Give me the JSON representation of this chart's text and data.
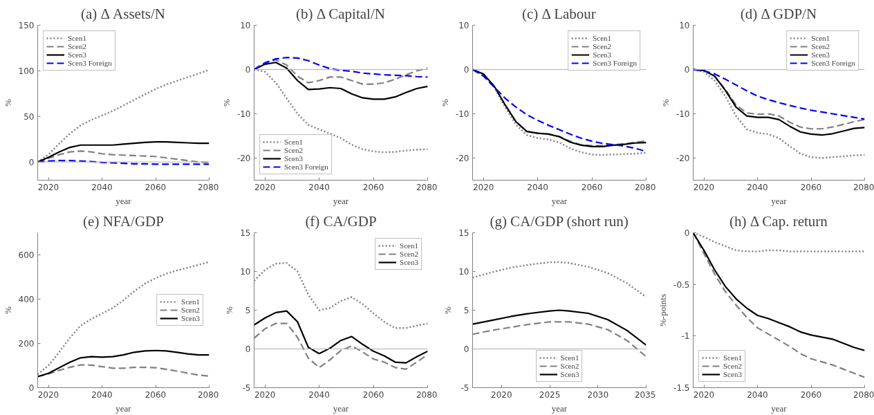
{
  "chart_data": [
    {
      "type": "line",
      "title": "(a) Δ Assets/N",
      "xlabel": "year",
      "ylabel": "%",
      "xlim": [
        2016,
        2080
      ],
      "xticks": [
        2020,
        2040,
        2060,
        2080
      ],
      "ylim": [
        -20,
        150
      ],
      "yticks": [
        0,
        50,
        100,
        150
      ],
      "grid": false,
      "legend": "top left",
      "ref_lines": [
        {
          "axis": "y",
          "value": 0,
          "color": "#b0b0b0"
        }
      ],
      "x": [
        2016,
        2020,
        2024,
        2028,
        2032,
        2036,
        2040,
        2044,
        2048,
        2052,
        2056,
        2060,
        2064,
        2068,
        2072,
        2076,
        2080
      ],
      "series": [
        {
          "name": "Scen1",
          "color": "#808080",
          "line_style": "dotted",
          "values": [
            0,
            8,
            20,
            31,
            40,
            46,
            51,
            56,
            62,
            68,
            74,
            80,
            85,
            89,
            93,
            97,
            101
          ]
        },
        {
          "name": "Scen2",
          "color": "#808080",
          "line_style": "dashed",
          "values": [
            0,
            4,
            8,
            11,
            12,
            11,
            9,
            8,
            7.5,
            7,
            6.5,
            6,
            4.5,
            3,
            1.5,
            0,
            -0.5
          ]
        },
        {
          "name": "Scen3",
          "color": "#000000",
          "line_style": "solid",
          "values": [
            0,
            5,
            11,
            16,
            18.5,
            18.5,
            18.5,
            18.5,
            19.5,
            20.5,
            21.5,
            22,
            22,
            21.5,
            21,
            20.5,
            20.5
          ]
        },
        {
          "name": "Scen3 Foreign",
          "color": "#0000ff",
          "line_style": "dashed",
          "values": [
            0,
            1,
            1.5,
            1.5,
            1,
            0.5,
            -0.5,
            -1,
            -1.5,
            -2,
            -2,
            -2.5,
            -2.5,
            -2.5,
            -2.5,
            -2.5,
            -2.5
          ]
        }
      ]
    },
    {
      "type": "line",
      "title": "(b) Δ Capital/N",
      "xlabel": "year",
      "ylabel": "%",
      "xlim": [
        2016,
        2080
      ],
      "xticks": [
        2020,
        2040,
        2060,
        2080
      ],
      "ylim": [
        -25,
        10
      ],
      "yticks": [
        -20,
        -10,
        0,
        10
      ],
      "grid": false,
      "legend": "bottom left",
      "ref_lines": [
        {
          "axis": "y",
          "value": 0,
          "color": "#b0b0b0"
        }
      ],
      "x": [
        2016,
        2020,
        2024,
        2028,
        2032,
        2036,
        2040,
        2044,
        2048,
        2052,
        2056,
        2060,
        2064,
        2068,
        2072,
        2076,
        2080
      ],
      "series": [
        {
          "name": "Scen1",
          "color": "#808080",
          "line_style": "dotted",
          "values": [
            0,
            -0.5,
            -3,
            -6.5,
            -10,
            -12.5,
            -13.5,
            -14.5,
            -15.5,
            -17,
            -18,
            -18.5,
            -18.7,
            -18.6,
            -18.3,
            -18.1,
            -18
          ]
        },
        {
          "name": "Scen2",
          "color": "#808080",
          "line_style": "dashed",
          "values": [
            0,
            1.5,
            2.2,
            1,
            -1.5,
            -3,
            -2.5,
            -1.7,
            -1.7,
            -2.5,
            -3.3,
            -3.3,
            -3,
            -2.2,
            -1.2,
            -0.3,
            0.3
          ]
        },
        {
          "name": "Scen3",
          "color": "#000000",
          "line_style": "solid",
          "values": [
            0,
            1.2,
            1.6,
            0.3,
            -2.5,
            -4.5,
            -4.4,
            -4.1,
            -4.3,
            -5.5,
            -6.4,
            -6.7,
            -6.7,
            -6.2,
            -5.2,
            -4.3,
            -3.8
          ]
        },
        {
          "name": "Scen3 Foreign",
          "color": "#0000ff",
          "line_style": "dashed",
          "values": [
            0,
            1.5,
            2.4,
            2.7,
            2.6,
            2,
            1,
            0.2,
            -0.2,
            -0.4,
            -0.8,
            -1,
            -1.2,
            -1.3,
            -1.4,
            -1.6,
            -1.7
          ]
        }
      ]
    },
    {
      "type": "line",
      "title": "(c) Δ Labour",
      "xlabel": "year",
      "ylabel": "%",
      "xlim": [
        2016,
        2080
      ],
      "xticks": [
        2020,
        2040,
        2060,
        2080
      ],
      "ylim": [
        -25,
        10
      ],
      "yticks": [
        -20,
        -10,
        0,
        10
      ],
      "grid": false,
      "legend": "top right",
      "ref_lines": [
        {
          "axis": "y",
          "value": 0,
          "color": "#b0b0b0"
        }
      ],
      "x": [
        2016,
        2020,
        2024,
        2028,
        2032,
        2036,
        2040,
        2044,
        2048,
        2052,
        2056,
        2060,
        2064,
        2068,
        2072,
        2076,
        2080
      ],
      "series": [
        {
          "name": "Scen1",
          "color": "#808080",
          "line_style": "dotted",
          "values": [
            0,
            -1.2,
            -4,
            -8.5,
            -12.5,
            -14.8,
            -15.5,
            -15.8,
            -16.5,
            -17.8,
            -18.7,
            -19.2,
            -19.3,
            -19.2,
            -19.1,
            -19,
            -18.8
          ]
        },
        {
          "name": "Scen2",
          "color": "#808080",
          "line_style": "dashed",
          "values": [
            0,
            -1,
            -3.8,
            -8,
            -11.8,
            -14,
            -14.4,
            -14.6,
            -15.1,
            -16.2,
            -17,
            -17.2,
            -17.2,
            -17,
            -16.8,
            -16.4,
            -16.2
          ]
        },
        {
          "name": "Scen3",
          "color": "#000000",
          "line_style": "solid",
          "values": [
            0,
            -1,
            -3.8,
            -8,
            -11.8,
            -14,
            -14.4,
            -14.6,
            -15.2,
            -16.4,
            -17.1,
            -17.4,
            -17.4,
            -17.1,
            -16.9,
            -16.6,
            -16.5
          ]
        },
        {
          "name": "Scen3 Foreign",
          "color": "#0000ff",
          "line_style": "dashed",
          "values": [
            0,
            -1.5,
            -4,
            -6.5,
            -8.5,
            -10.2,
            -11.5,
            -12.6,
            -13.6,
            -14.6,
            -15.5,
            -16.2,
            -16.7,
            -17,
            -17.3,
            -17.8,
            -18.5
          ]
        }
      ]
    },
    {
      "type": "line",
      "title": "(d) Δ GDP/N",
      "xlabel": "year",
      "ylabel": "%",
      "xlim": [
        2016,
        2080
      ],
      "xticks": [
        2020,
        2040,
        2060,
        2080
      ],
      "ylim": [
        -25,
        10
      ],
      "yticks": [
        -20,
        -10,
        0,
        10
      ],
      "grid": false,
      "legend": "top right",
      "ref_lines": [
        {
          "axis": "y",
          "value": 0,
          "color": "#b0b0b0"
        }
      ],
      "x": [
        2016,
        2020,
        2024,
        2028,
        2032,
        2036,
        2040,
        2044,
        2048,
        2052,
        2056,
        2060,
        2064,
        2068,
        2072,
        2076,
        2080
      ],
      "series": [
        {
          "name": "Scen1",
          "color": "#808080",
          "line_style": "dotted",
          "values": [
            0,
            -0.5,
            -2.5,
            -6,
            -10.5,
            -13.5,
            -14.3,
            -14.6,
            -15.5,
            -17.3,
            -19,
            -19.8,
            -20,
            -19.8,
            -19.6,
            -19.4,
            -19.3
          ]
        },
        {
          "name": "Scen2",
          "color": "#808080",
          "line_style": "dashed",
          "values": [
            0,
            -0.2,
            -1.5,
            -4.5,
            -8,
            -9.8,
            -10.1,
            -10,
            -10.5,
            -11.9,
            -13,
            -13.4,
            -13.4,
            -13,
            -12.4,
            -11.8,
            -11.3
          ]
        },
        {
          "name": "Scen3",
          "color": "#000000",
          "line_style": "solid",
          "values": [
            0,
            -0.2,
            -1.5,
            -4.7,
            -8.5,
            -10.5,
            -10.8,
            -10.8,
            -11.3,
            -12.8,
            -14.1,
            -14.6,
            -14.8,
            -14.5,
            -13.9,
            -13.3,
            -13.1
          ]
        },
        {
          "name": "Scen3 Foreign",
          "color": "#0000ff",
          "line_style": "dashed",
          "values": [
            0,
            -0.3,
            -1,
            -2.2,
            -3.5,
            -4.8,
            -6,
            -6.8,
            -7.5,
            -8.1,
            -8.7,
            -9.2,
            -9.6,
            -10,
            -10.4,
            -10.8,
            -11.2
          ]
        }
      ]
    },
    {
      "type": "line",
      "title": "(e) NFA/GDP",
      "xlabel": "year",
      "ylabel": "%",
      "xlim": [
        2016,
        2080
      ],
      "xticks": [
        2020,
        2040,
        2060,
        2080
      ],
      "ylim": [
        0,
        700
      ],
      "yticks": [
        0,
        200,
        400,
        600
      ],
      "grid": false,
      "legend": "right",
      "x": [
        2016,
        2020,
        2024,
        2028,
        2032,
        2036,
        2040,
        2044,
        2048,
        2052,
        2056,
        2060,
        2064,
        2068,
        2072,
        2076,
        2080
      ],
      "series": [
        {
          "name": "Scen1",
          "color": "#808080",
          "line_style": "dotted",
          "values": [
            60,
            100,
            160,
            225,
            280,
            310,
            335,
            360,
            395,
            435,
            470,
            495,
            515,
            530,
            542,
            555,
            568
          ]
        },
        {
          "name": "Scen2",
          "color": "#808080",
          "line_style": "dashed",
          "values": [
            50,
            62,
            78,
            92,
            103,
            102,
            95,
            88,
            88,
            92,
            92,
            90,
            83,
            75,
            66,
            57,
            52
          ]
        },
        {
          "name": "Scen3",
          "color": "#000000",
          "line_style": "solid",
          "values": [
            50,
            65,
            90,
            115,
            135,
            140,
            138,
            140,
            148,
            160,
            166,
            168,
            166,
            160,
            153,
            148,
            148
          ]
        }
      ]
    },
    {
      "type": "line",
      "title": "(f) CA/GDP",
      "xlabel": "year",
      "ylabel": "%",
      "xlim": [
        2016,
        2080
      ],
      "xticks": [
        2020,
        2040,
        2060,
        2080
      ],
      "ylim": [
        -5,
        15
      ],
      "yticks": [
        -5,
        0,
        5,
        10,
        15
      ],
      "grid": false,
      "legend": "top right",
      "ref_lines": [
        {
          "axis": "y",
          "value": 0,
          "color": "#b0b0b0"
        }
      ],
      "x": [
        2016,
        2020,
        2024,
        2028,
        2032,
        2036,
        2040,
        2044,
        2048,
        2052,
        2056,
        2060,
        2064,
        2068,
        2072,
        2076,
        2080
      ],
      "series": [
        {
          "name": "Scen1",
          "color": "#808080",
          "line_style": "dotted",
          "values": [
            8.8,
            10.2,
            11,
            11.1,
            10,
            7,
            5,
            5.3,
            6.2,
            6.7,
            5.8,
            4.6,
            3.5,
            2.7,
            2.7,
            3,
            3.3
          ]
        },
        {
          "name": "Scen2",
          "color": "#808080",
          "line_style": "dashed",
          "values": [
            1.4,
            2.6,
            3.3,
            3.3,
            1.5,
            -1.2,
            -2.4,
            -1.4,
            -0.2,
            0.4,
            -0.4,
            -1.3,
            -1.7,
            -2.4,
            -2.6,
            -1.7,
            -0.7
          ]
        },
        {
          "name": "Scen3",
          "color": "#000000",
          "line_style": "solid",
          "values": [
            3.1,
            4,
            4.7,
            4.9,
            3.5,
            0.2,
            -0.6,
            0.1,
            1.1,
            1.6,
            0.6,
            -0.3,
            -0.9,
            -1.7,
            -1.8,
            -1,
            -0.3
          ]
        }
      ]
    },
    {
      "type": "line",
      "title": "(g) CA/GDP (short run)",
      "xlabel": "year",
      "ylabel": "%",
      "xlim": [
        2017,
        2035
      ],
      "xticks": [
        2020,
        2025,
        2030,
        2035
      ],
      "ylim": [
        -5,
        15
      ],
      "yticks": [
        -5,
        0,
        5,
        10,
        15
      ],
      "grid": false,
      "legend": "bottom",
      "ref_lines": [
        {
          "axis": "y",
          "value": 0,
          "color": "#b0b0b0"
        }
      ],
      "x": [
        2017,
        2019,
        2021,
        2023,
        2025,
        2026,
        2027,
        2029,
        2031,
        2033,
        2035
      ],
      "series": [
        {
          "name": "Scen1",
          "color": "#808080",
          "line_style": "dotted",
          "values": [
            9.2,
            9.9,
            10.5,
            10.9,
            11.2,
            11.2,
            11.1,
            10.6,
            9.8,
            8.5,
            6.7
          ]
        },
        {
          "name": "Scen2",
          "color": "#808080",
          "line_style": "dashed",
          "values": [
            1.9,
            2.4,
            2.8,
            3.2,
            3.5,
            3.5,
            3.5,
            3.2,
            2.5,
            1.1,
            -1
          ]
        },
        {
          "name": "Scen3",
          "color": "#000000",
          "line_style": "solid",
          "values": [
            3.2,
            3.7,
            4.2,
            4.6,
            4.9,
            5,
            4.9,
            4.6,
            3.8,
            2.4,
            0.5
          ]
        }
      ]
    },
    {
      "type": "line",
      "title": "(h) Δ Cap. return",
      "xlabel": "year",
      "ylabel": "%-points",
      "xlim": [
        2016,
        2080
      ],
      "xticks": [
        2020,
        2040,
        2060,
        2080
      ],
      "ylim": [
        -1.5,
        0
      ],
      "yticks": [
        {
          "value": -1.5,
          "label": "-1.5"
        },
        {
          "value": -1,
          "label": "-1"
        },
        {
          "value": -0.5,
          "label": "-0.5"
        },
        0
      ],
      "grid": false,
      "legend": "bottom left",
      "x": [
        2016,
        2020,
        2024,
        2028,
        2032,
        2036,
        2040,
        2044,
        2048,
        2052,
        2056,
        2060,
        2064,
        2068,
        2072,
        2076,
        2080
      ],
      "series": [
        {
          "name": "Scen1",
          "color": "#808080",
          "line_style": "dotted",
          "values": [
            0,
            -0.04,
            -0.09,
            -0.13,
            -0.17,
            -0.18,
            -0.18,
            -0.17,
            -0.17,
            -0.18,
            -0.18,
            -0.18,
            -0.18,
            -0.18,
            -0.18,
            -0.18,
            -0.18
          ]
        },
        {
          "name": "Scen2",
          "color": "#808080",
          "line_style": "dashed",
          "values": [
            0,
            -0.2,
            -0.4,
            -0.57,
            -0.7,
            -0.82,
            -0.92,
            -0.98,
            -1.04,
            -1.1,
            -1.17,
            -1.22,
            -1.25,
            -1.28,
            -1.32,
            -1.36,
            -1.4
          ]
        },
        {
          "name": "Scen3",
          "color": "#000000",
          "line_style": "solid",
          "values": [
            0,
            -0.17,
            -0.36,
            -0.52,
            -0.64,
            -0.73,
            -0.8,
            -0.83,
            -0.87,
            -0.91,
            -0.96,
            -0.99,
            -1.01,
            -1.03,
            -1.07,
            -1.11,
            -1.14
          ]
        }
      ]
    }
  ]
}
